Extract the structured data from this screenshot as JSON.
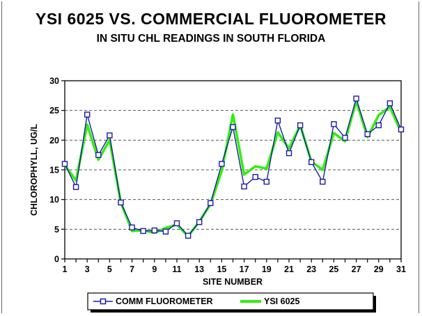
{
  "chart_data": {
    "type": "line",
    "title": "YSI 6025 VS. COMMERCIAL FLUOROMETER",
    "subtitle": "IN SITU CHL READINGS IN SOUTH FLORIDA",
    "xlabel": "SITE NUMBER",
    "ylabel": "CHLOROPHYLL, UG/L",
    "xlim": [
      1,
      31
    ],
    "ylim": [
      0,
      30
    ],
    "x_ticks": [
      1,
      3,
      5,
      7,
      9,
      11,
      13,
      15,
      17,
      19,
      21,
      23,
      25,
      27,
      29,
      31
    ],
    "y_ticks": [
      0,
      5,
      10,
      15,
      20,
      25,
      30
    ],
    "grid": "horizontal dashed",
    "legend_position": "bottom",
    "x": [
      1,
      2,
      3,
      4,
      5,
      6,
      7,
      8,
      9,
      10,
      11,
      12,
      13,
      14,
      15,
      16,
      17,
      18,
      19,
      20,
      21,
      22,
      23,
      24,
      25,
      26,
      27,
      28,
      29,
      30,
      31
    ],
    "series": [
      {
        "name": "COMM FLUOROMETER",
        "color": "#1a1aa8",
        "marker": "square",
        "values": [
          16.0,
          12.1,
          24.3,
          17.5,
          20.8,
          9.5,
          5.3,
          4.7,
          4.8,
          4.6,
          6.0,
          3.9,
          6.2,
          9.4,
          16.0,
          22.2,
          12.2,
          13.8,
          13.0,
          23.3,
          17.8,
          22.5,
          16.3,
          13.0,
          22.7,
          20.4,
          27.0,
          21.0,
          22.5,
          26.2,
          21.8
        ]
      },
      {
        "name": "YSI 6025",
        "color": "#33ee11",
        "marker": "none",
        "values": [
          15.8,
          13.2,
          22.6,
          16.7,
          20.0,
          9.5,
          4.7,
          4.8,
          4.4,
          5.2,
          5.8,
          3.8,
          6.3,
          9.2,
          14.8,
          24.3,
          14.2,
          15.6,
          15.2,
          21.3,
          18.6,
          22.5,
          16.4,
          15.0,
          21.2,
          19.8,
          26.6,
          20.5,
          24.2,
          25.6,
          21.3
        ]
      }
    ]
  }
}
